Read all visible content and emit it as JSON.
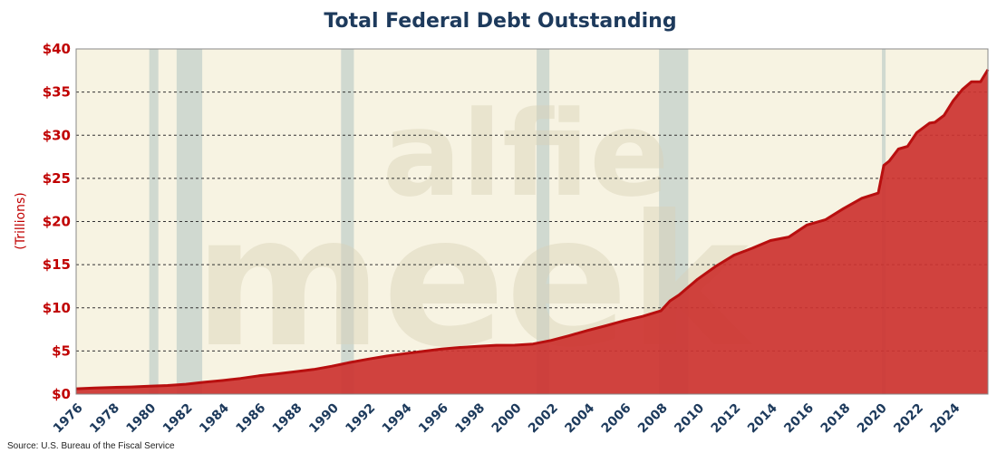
{
  "chart_data": {
    "type": "area",
    "title": "Total Federal Debt Outstanding",
    "ylabel": "(Trillions)",
    "xlabel": "",
    "source": "Source: U.S. Bureau of the Fiscal Service",
    "watermark_lines": [
      "alfie",
      "meek"
    ],
    "xlim": [
      1976,
      2025.9
    ],
    "ylim": [
      0,
      40
    ],
    "x_ticks": [
      1976,
      1978,
      1980,
      1982,
      1984,
      1986,
      1988,
      1990,
      1992,
      1994,
      1996,
      1998,
      2000,
      2002,
      2004,
      2006,
      2008,
      2010,
      2012,
      2014,
      2016,
      2018,
      2020,
      2022,
      2024
    ],
    "x_tick_labels": [
      "1976",
      "1978",
      "1980",
      "1982",
      "1984",
      "1986",
      "1988",
      "1990",
      "1992",
      "1994",
      "1996",
      "1998",
      "2000",
      "2002",
      "2004",
      "2006",
      "2008",
      "2010",
      "2012",
      "2014",
      "2016",
      "2018",
      "2020",
      "2022",
      "2024"
    ],
    "y_ticks": [
      0,
      5,
      10,
      15,
      20,
      25,
      30,
      35,
      40
    ],
    "y_tick_labels": [
      "$0",
      "$5",
      "$10",
      "$15",
      "$20",
      "$25",
      "$30",
      "$35",
      "$40"
    ],
    "grid": "horizontal dashed",
    "recessions": [
      [
        1980.0,
        1980.5
      ],
      [
        1981.5,
        1982.9
      ],
      [
        1990.5,
        1991.2
      ],
      [
        2001.2,
        2001.9
      ],
      [
        2007.9,
        2009.5
      ],
      [
        2020.1,
        2020.3
      ]
    ],
    "series": [
      {
        "x": [
          1976,
          1977,
          1978,
          1979,
          1980,
          1981,
          1982,
          1983,
          1984,
          1985,
          1986,
          1987,
          1988,
          1989,
          1990,
          1991,
          1992,
          1993,
          1994,
          1995,
          1996,
          1997,
          1998,
          1999,
          2000,
          2001,
          2002,
          2003,
          2004,
          2005,
          2006,
          2007,
          2008,
          2008.5,
          2009,
          2010,
          2011,
          2012,
          2013,
          2014,
          2015,
          2016,
          2017,
          2018,
          2019,
          2019.9,
          2020.2,
          2020.5,
          2021,
          2021.5,
          2022,
          2022.7,
          2023,
          2023.5,
          2024,
          2024.5,
          2025,
          2025.5,
          2025.9
        ],
        "values": [
          0.62,
          0.7,
          0.78,
          0.83,
          0.91,
          1.0,
          1.14,
          1.38,
          1.57,
          1.82,
          2.12,
          2.35,
          2.6,
          2.86,
          3.23,
          3.67,
          4.06,
          4.41,
          4.69,
          4.97,
          5.22,
          5.41,
          5.53,
          5.66,
          5.67,
          5.81,
          6.23,
          6.78,
          7.38,
          7.93,
          8.51,
          9.01,
          9.65,
          10.8,
          11.5,
          13.3,
          14.8,
          16.1,
          16.9,
          17.8,
          18.2,
          19.6,
          20.2,
          21.5,
          22.7,
          23.3,
          26.5,
          27.0,
          28.4,
          28.7,
          30.3,
          31.4,
          31.5,
          32.3,
          34.0,
          35.3,
          36.2,
          36.2,
          37.6
        ]
      }
    ],
    "colors": {
      "plot_bg": "#f7f3e2",
      "area_fill": "#cc3330",
      "line": "#b80f0f",
      "recession": "#c9d3cc",
      "title": "#1d3a5c",
      "y_tick": "#c00000",
      "x_tick": "#1d3a5c",
      "grid": "#333333"
    }
  }
}
